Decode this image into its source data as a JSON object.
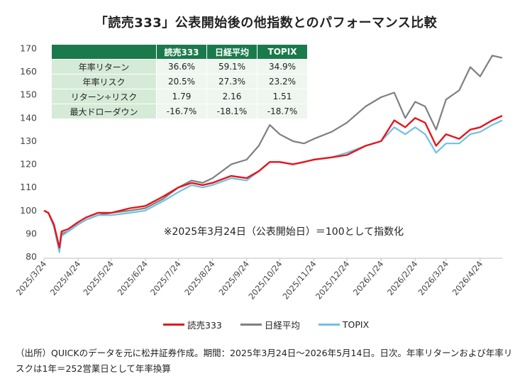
{
  "title": "「読売333」公表開始後の他指数とのパフォーマンス比較",
  "annotation": "※2025年3月24日（公表開始日）＝100として指数化",
  "footnote": "（出所）QUICKのデータを元に松井証券作成。期間：2025年3月24日～2026年5月14日。日次。年率リターンおよび年率リスクは1年＝252営業日として年率換算",
  "table": {
    "headers": [
      "読売333",
      "日経平均",
      "TOPIX"
    ],
    "rows": [
      {
        "label": "年率リターン",
        "values": [
          "36.6%",
          "59.1%",
          "34.9%"
        ]
      },
      {
        "label": "年率リスク",
        "values": [
          "20.5%",
          "27.3%",
          "23.2%"
        ]
      },
      {
        "label": "リターン÷リスク",
        "values": [
          "1.79",
          "2.16",
          "1.51"
        ]
      },
      {
        "label": "最大ドローダウン",
        "values": [
          "-16.7%",
          "-18.1%",
          "-18.7%"
        ]
      }
    ]
  },
  "chart_data": {
    "type": "line",
    "ylim": [
      80,
      172
    ],
    "yticks": [
      80,
      90,
      100,
      110,
      120,
      130,
      140,
      150,
      160,
      170
    ],
    "xticks": [
      "2025/3/24",
      "2025/4/24",
      "2025/5/24",
      "2025/6/24",
      "2025/7/24",
      "2025/8/24",
      "2025/9/24",
      "2025/10/24",
      "2025/11/24",
      "2025/12/24",
      "2026/1/24",
      "2026/2/24",
      "2026/3/24",
      "2026/4/24"
    ],
    "x": [
      "2025/3/24",
      "2025/3/28",
      "2025/4/2",
      "2025/4/7",
      "2025/4/9",
      "2025/4/15",
      "2025/4/24",
      "2025/5/1",
      "2025/5/12",
      "2025/5/24",
      "2025/6/10",
      "2025/6/24",
      "2025/7/10",
      "2025/7/24",
      "2025/8/5",
      "2025/8/15",
      "2025/8/24",
      "2025/9/10",
      "2025/9/24",
      "2025/10/5",
      "2025/10/15",
      "2025/10/24",
      "2025/11/5",
      "2025/11/15",
      "2025/11/24",
      "2025/12/10",
      "2025/12/24",
      "2026/1/10",
      "2026/1/24",
      "2026/2/5",
      "2026/2/15",
      "2026/2/24",
      "2026/3/5",
      "2026/3/15",
      "2026/3/24",
      "2026/4/5",
      "2026/4/15",
      "2026/4/24",
      "2026/5/5",
      "2026/5/14"
    ],
    "series": [
      {
        "name": "読売333",
        "color": "#e8141b",
        "values": [
          100,
          99,
          94,
          84,
          91,
          92,
          95,
          97,
          99,
          99,
          101,
          102,
          106,
          110,
          112,
          111,
          112,
          115,
          114,
          117,
          121,
          121,
          120,
          121,
          122,
          123,
          124,
          128,
          130,
          139,
          136,
          140,
          138,
          128,
          133,
          131,
          135,
          136,
          139,
          141
        ]
      },
      {
        "name": "日経平均",
        "color": "#7f7f7f",
        "values": [
          100,
          99,
          93,
          83,
          90,
          91,
          94,
          96,
          98,
          99,
          100,
          101,
          105,
          110,
          113,
          112,
          114,
          120,
          122,
          128,
          137,
          133,
          130,
          129,
          131,
          134,
          138,
          145,
          149,
          151,
          140,
          147,
          145,
          135,
          148,
          152,
          162,
          158,
          167,
          166
        ]
      },
      {
        "name": "TOPIX",
        "color": "#6ec1e4",
        "values": [
          100,
          99,
          93,
          82,
          89,
          91,
          94,
          96,
          98,
          98,
          99,
          100,
          104,
          108,
          111,
          110,
          111,
          114,
          113,
          117,
          121,
          121,
          120,
          121,
          122,
          123,
          125,
          128,
          130,
          136,
          133,
          136,
          133,
          125,
          129,
          129,
          133,
          134,
          137,
          139
        ]
      }
    ]
  }
}
